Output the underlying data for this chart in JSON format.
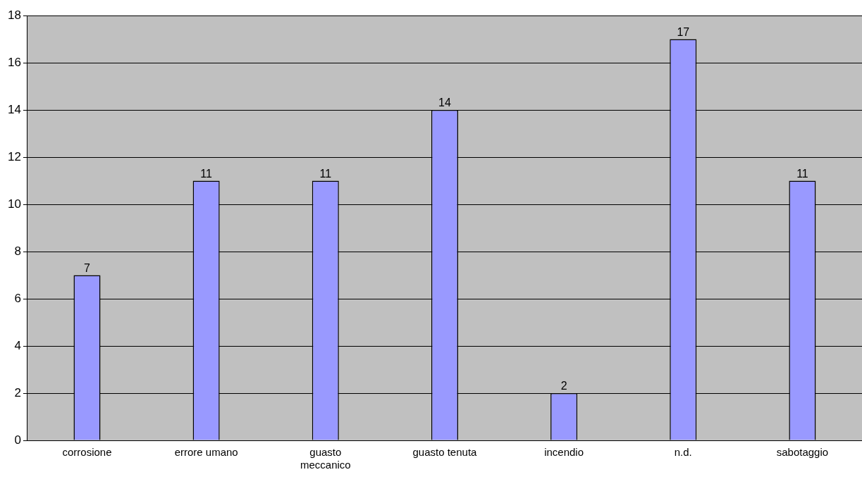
{
  "chart_data": {
    "type": "bar",
    "categories": [
      "corrosione",
      "errore umano",
      "guasto meccanico",
      "guasto tenuta",
      "incendio",
      "n.d.",
      "sabotaggio"
    ],
    "values": [
      7,
      11,
      11,
      14,
      2,
      17,
      11
    ],
    "color": "#9999ff",
    "ylim": [
      0,
      18
    ],
    "yticks": [
      0,
      2,
      4,
      6,
      8,
      10,
      12,
      14,
      16,
      18
    ],
    "grid": "y",
    "data_labels": true,
    "legend": false
  }
}
